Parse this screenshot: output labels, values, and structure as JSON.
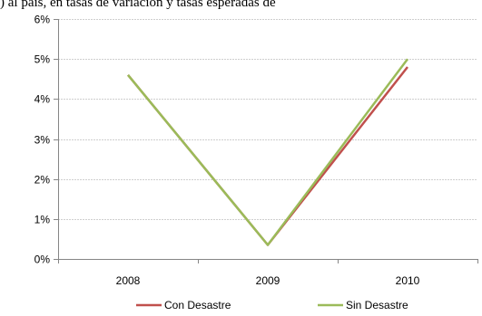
{
  "caption": ") al país, en tasas de variación y tasas esperadas de",
  "chart_data": {
    "type": "line",
    "title": "",
    "xlabel": "",
    "ylabel": "",
    "categories": [
      "2008",
      "2009",
      "2010"
    ],
    "ylim": [
      0,
      6
    ],
    "y_ticks": [
      "0%",
      "1%",
      "2%",
      "3%",
      "4%",
      "5%",
      "6%"
    ],
    "grid": true,
    "legend_position": "bottom",
    "series": [
      {
        "name": "Con Desastre",
        "color": "#c0504d",
        "values": [
          4.6,
          0.35,
          4.8
        ]
      },
      {
        "name": "Sin Desastre",
        "color": "#9bbb59",
        "values": [
          4.6,
          0.35,
          5.0
        ]
      }
    ]
  }
}
